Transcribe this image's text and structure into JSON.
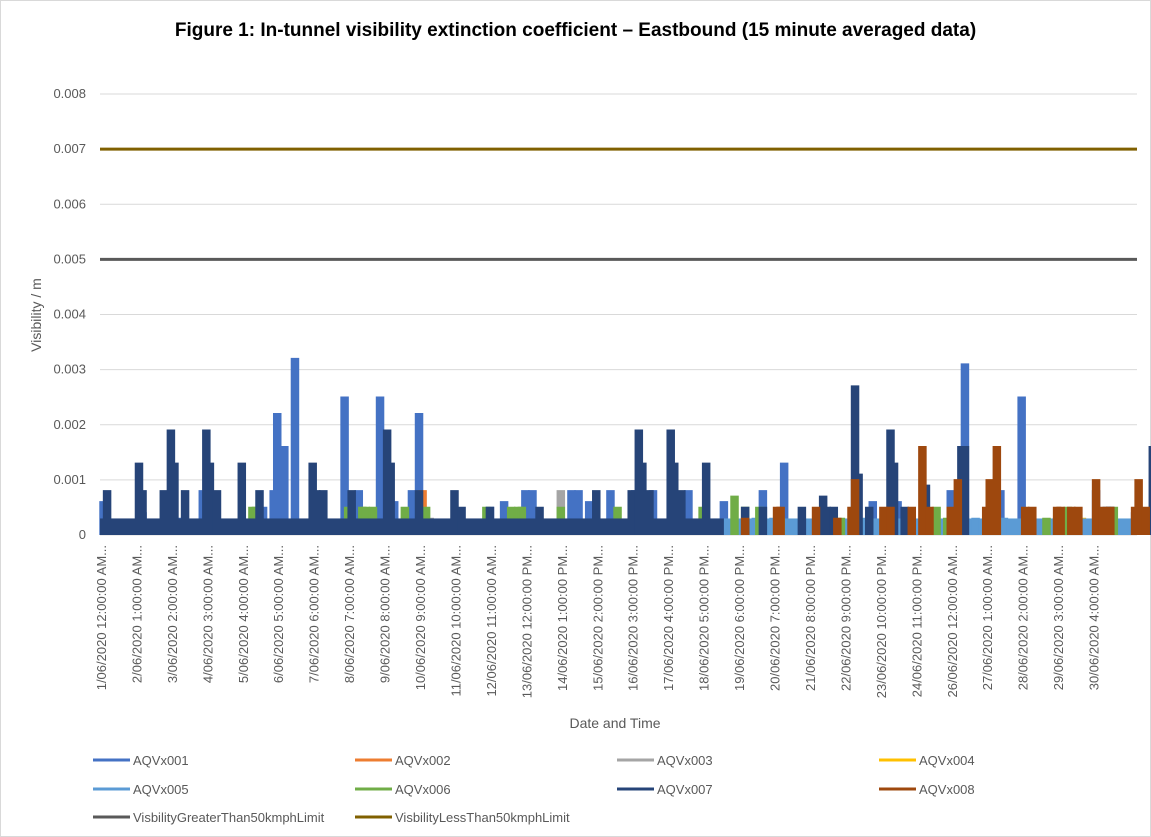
{
  "chart_data": {
    "type": "line",
    "title": "Figure 1: In-tunnel visibility extinction coefficient – Eastbound (15 minute averaged data)",
    "xlabel": "Date and Time",
    "ylabel": "Visibility / m",
    "ylim": [
      0,
      0.008
    ],
    "yticks": [
      "0",
      "0.001",
      "0.002",
      "0.003",
      "0.004",
      "0.005",
      "0.006",
      "0.007",
      "0.008"
    ],
    "grid": "horizontal",
    "legend_position": "bottom",
    "categories": [
      "1/06/2020 12:00:00 AM...",
      "2/06/2020 1:00:00 AM...",
      "3/06/2020 2:00:00 AM...",
      "4/06/2020 3:00:00 AM...",
      "5/06/2020 4:00:00 AM...",
      "6/06/2020 5:00:00 AM...",
      "7/06/2020 6:00:00 AM...",
      "8/06/2020 7:00:00 AM...",
      "9/06/2020 8:00:00 AM...",
      "10/06/2020 9:00:00 AM...",
      "11/06/2020 10:00:00 AM...",
      "12/06/2020 11:00:00 AM...",
      "13/06/2020 12:00:00 PM...",
      "14/06/2020 1:00:00 PM...",
      "15/06/2020 2:00:00 PM...",
      "16/06/2020 3:00:00 PM...",
      "17/06/2020 4:00:00 PM...",
      "18/06/2020 5:00:00 PM...",
      "19/06/2020 6:00:00 PM...",
      "20/06/2020 7:00:00 PM...",
      "21/06/2020 8:00:00 PM...",
      "22/06/2020 9:00:00 PM...",
      "23/06/2020 10:00:00 PM...",
      "24/06/2020 11:00:00 PM...",
      "26/06/2020 12:00:00 AM...",
      "27/06/2020 1:00:00 AM...",
      "28/06/2020 2:00:00 AM...",
      "29/06/2020 3:00:00 AM...",
      "30/06/2020 4:00:00 AM..."
    ],
    "series": [
      {
        "name": "AQVx001",
        "color": "#4472c4",
        "baseline": 0.0003,
        "spikes": [
          [
            0.1,
            0.0006
          ],
          [
            7.3,
            0.0008
          ],
          [
            8.8,
            0.0008
          ],
          [
            11.0,
            0.0005
          ],
          [
            13.8,
            0.0006
          ],
          [
            15.1,
            0.0008
          ],
          [
            16.6,
            0.0008
          ],
          [
            17.6,
            0.0006
          ],
          [
            18.7,
            0.0008
          ],
          [
            19.3,
            0.0013
          ],
          [
            21.8,
            0.0006
          ],
          [
            22.5,
            0.0006
          ],
          [
            24.0,
            0.0008
          ],
          [
            24.4,
            0.0031
          ],
          [
            25.4,
            0.0008
          ],
          [
            26.0,
            0.0025
          ],
          [
            27.2,
            0.0004
          ],
          [
            28.1,
            0.0008
          ],
          [
            29.2,
            0.0004
          ],
          [
            30.0,
            0.0002
          ],
          [
            5.0,
            0.0022
          ],
          [
            5.5,
            0.0032
          ],
          [
            6.2,
            0.0006
          ],
          [
            6.9,
            0.0025
          ],
          [
            7.9,
            0.0025
          ],
          [
            8.3,
            0.0006
          ],
          [
            9.0,
            0.0022
          ],
          [
            11.4,
            0.0006
          ],
          [
            12.0,
            0.0008
          ],
          [
            12.2,
            0.0008
          ],
          [
            13.3,
            0.0008
          ],
          [
            13.5,
            0.0008
          ],
          [
            14.4,
            0.0008
          ],
          [
            15.6,
            0.0008
          ],
          [
            16.1,
            0.0008
          ],
          [
            5.2,
            0.0016
          ],
          [
            4.9,
            0.0008
          ],
          [
            4.6,
            0.0005
          ],
          [
            2.9,
            0.0008
          ],
          [
            1.2,
            0.0004
          ],
          [
            2.3,
            0.0003
          ]
        ]
      },
      {
        "name": "AQVx002",
        "color": "#ed7d31",
        "baseline": 0.0,
        "spikes": [
          [
            9.1,
            0.0008
          ],
          [
            20.0,
            0.0002
          ],
          [
            27.8,
            0.0002
          ]
        ]
      },
      {
        "name": "AQVx003",
        "color": "#a5a5a5",
        "baseline": 0.0,
        "spikes": [
          [
            13.0,
            0.0008
          ],
          [
            9.3,
            0.0003
          ]
        ]
      },
      {
        "name": "AQVx004",
        "color": "#ffc000",
        "baseline": 0.0,
        "spikes": [
          [
            27.1,
            0.0003
          ],
          [
            27.4,
            0.0003
          ],
          [
            27.7,
            0.0003
          ],
          [
            28.2,
            0.0003
          ],
          [
            28.5,
            0.0003
          ],
          [
            29.6,
            0.0003
          ],
          [
            29.9,
            0.0002
          ]
        ]
      },
      {
        "name": "AQVx005",
        "color": "#5b9bd5",
        "baseline": 0.0003,
        "spikes": [
          [
            18.5,
            0.0003
          ],
          [
            19.0,
            0.0003
          ],
          [
            20.5,
            0.0003
          ],
          [
            21.5,
            0.0003
          ],
          [
            22.8,
            0.0003
          ],
          [
            24.7,
            0.0003
          ],
          [
            25.5,
            0.0003
          ],
          [
            29.5,
            0.0003
          ]
        ]
      },
      {
        "name": "AQVx006",
        "color": "#70ad47",
        "baseline": 0.0,
        "spikes": [
          [
            4.3,
            0.0005
          ],
          [
            4.4,
            0.0005
          ],
          [
            7.0,
            0.0005
          ],
          [
            7.4,
            0.0005
          ],
          [
            7.5,
            0.0005
          ],
          [
            7.7,
            0.0005
          ],
          [
            8.6,
            0.0005
          ],
          [
            9.2,
            0.0005
          ],
          [
            10.9,
            0.0005
          ],
          [
            11.6,
            0.0005
          ],
          [
            11.8,
            0.0005
          ],
          [
            11.9,
            0.0005
          ],
          [
            13.0,
            0.0005
          ],
          [
            14.6,
            0.0005
          ],
          [
            17.0,
            0.0005
          ],
          [
            17.9,
            0.0007
          ],
          [
            18.2,
            0.0005
          ],
          [
            18.6,
            0.0005
          ],
          [
            19.2,
            0.0003
          ],
          [
            20.9,
            0.0003
          ],
          [
            21.3,
            0.0005
          ],
          [
            23.6,
            0.0005
          ],
          [
            23.9,
            0.0003
          ],
          [
            26.7,
            0.0003
          ],
          [
            27.0,
            0.0003
          ],
          [
            27.3,
            0.0005
          ],
          [
            28.6,
            0.0005
          ],
          [
            29.8,
            0.0003
          ]
        ]
      },
      {
        "name": "AQVx007",
        "color": "#264478",
        "baseline": 0.0003,
        "spikes": [
          [
            0.2,
            0.0008
          ],
          [
            1.1,
            0.0013
          ],
          [
            1.2,
            0.0008
          ],
          [
            1.8,
            0.0008
          ],
          [
            2.0,
            0.0019
          ],
          [
            2.1,
            0.0013
          ],
          [
            2.4,
            0.0008
          ],
          [
            3.0,
            0.0019
          ],
          [
            3.1,
            0.0013
          ],
          [
            3.3,
            0.0008
          ],
          [
            4.0,
            0.0013
          ],
          [
            4.5,
            0.0008
          ],
          [
            6.0,
            0.0013
          ],
          [
            6.1,
            0.0008
          ],
          [
            6.3,
            0.0008
          ],
          [
            7.1,
            0.0008
          ],
          [
            8.1,
            0.0019
          ],
          [
            8.2,
            0.0013
          ],
          [
            9.0,
            0.0008
          ],
          [
            10.0,
            0.0008
          ],
          [
            10.2,
            0.0005
          ],
          [
            11.0,
            0.0005
          ],
          [
            12.4,
            0.0005
          ],
          [
            14.0,
            0.0008
          ],
          [
            15.0,
            0.0008
          ],
          [
            15.2,
            0.0019
          ],
          [
            15.3,
            0.0013
          ],
          [
            15.5,
            0.0008
          ],
          [
            16.1,
            0.0019
          ],
          [
            16.2,
            0.0013
          ],
          [
            16.4,
            0.0008
          ],
          [
            17.1,
            0.0013
          ],
          [
            18.2,
            0.0005
          ],
          [
            18.7,
            0.0005
          ],
          [
            19.8,
            0.0005
          ],
          [
            20.4,
            0.0007
          ],
          [
            20.5,
            0.0005
          ],
          [
            20.7,
            0.0005
          ],
          [
            21.3,
            0.0027
          ],
          [
            21.4,
            0.0011
          ],
          [
            21.7,
            0.0005
          ],
          [
            22.3,
            0.0019
          ],
          [
            22.4,
            0.0013
          ],
          [
            22.7,
            0.0005
          ],
          [
            23.3,
            0.0009
          ],
          [
            24.3,
            0.0016
          ],
          [
            24.4,
            0.0016
          ],
          [
            25.1,
            0.0008
          ],
          [
            28.4,
            0.0005
          ],
          [
            28.5,
            0.0005
          ],
          [
            29.7,
            0.0016
          ],
          [
            29.8,
            0.0011
          ]
        ]
      },
      {
        "name": "AQVx008",
        "color": "#9e480e",
        "baseline": 0.0,
        "spikes": [
          [
            18.2,
            0.0003
          ],
          [
            19.1,
            0.0005
          ],
          [
            19.2,
            0.0005
          ],
          [
            20.2,
            0.0005
          ],
          [
            20.8,
            0.0003
          ],
          [
            21.2,
            0.0005
          ],
          [
            21.3,
            0.001
          ],
          [
            22.1,
            0.0005
          ],
          [
            22.3,
            0.0005
          ],
          [
            22.9,
            0.0005
          ],
          [
            23.2,
            0.0016
          ],
          [
            23.4,
            0.0005
          ],
          [
            24.0,
            0.0005
          ],
          [
            24.2,
            0.001
          ],
          [
            25.0,
            0.0005
          ],
          [
            25.1,
            0.001
          ],
          [
            25.3,
            0.0016
          ],
          [
            26.1,
            0.0005
          ],
          [
            26.3,
            0.0005
          ],
          [
            27.0,
            0.0005
          ],
          [
            27.1,
            0.0005
          ],
          [
            27.4,
            0.0005
          ],
          [
            27.6,
            0.0005
          ],
          [
            28.1,
            0.001
          ],
          [
            28.3,
            0.0005
          ],
          [
            28.5,
            0.0005
          ],
          [
            29.2,
            0.0005
          ],
          [
            29.3,
            0.001
          ],
          [
            29.5,
            0.0005
          ]
        ]
      },
      {
        "name": "VisbilityGreaterThan50kmphLimit",
        "color": "#595959",
        "constant": 0.005
      },
      {
        "name": "VisbilityLessThan50kmphLimit",
        "color": "#806000",
        "constant": 0.007
      }
    ]
  }
}
